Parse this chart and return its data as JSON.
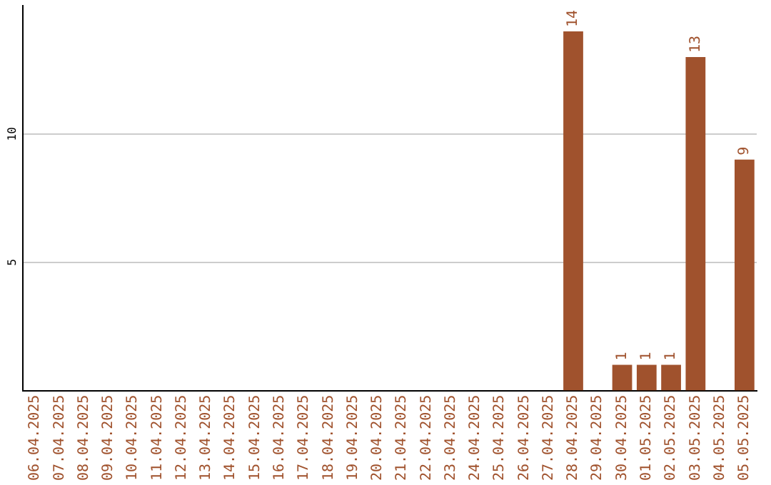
{
  "chart_data": {
    "type": "bar",
    "categories": [
      "06.04.2025",
      "07.04.2025",
      "08.04.2025",
      "09.04.2025",
      "10.04.2025",
      "11.04.2025",
      "12.04.2025",
      "13.04.2025",
      "14.04.2025",
      "15.04.2025",
      "16.04.2025",
      "17.04.2025",
      "18.04.2025",
      "19.04.2025",
      "20.04.2025",
      "21.04.2025",
      "22.04.2025",
      "23.04.2025",
      "24.04.2025",
      "25.04.2025",
      "26.04.2025",
      "27.04.2025",
      "28.04.2025",
      "29.04.2025",
      "30.04.2025",
      "01.05.2025",
      "02.05.2025",
      "03.05.2025",
      "04.05.2025",
      "05.05.2025"
    ],
    "values": [
      0,
      0,
      0,
      0,
      0,
      0,
      0,
      0,
      0,
      0,
      0,
      0,
      0,
      0,
      0,
      0,
      0,
      0,
      0,
      0,
      0,
      0,
      14,
      0,
      1,
      1,
      1,
      13,
      0,
      9
    ],
    "value_labels": [
      null,
      null,
      null,
      null,
      null,
      null,
      null,
      null,
      null,
      null,
      null,
      null,
      null,
      null,
      null,
      null,
      null,
      null,
      null,
      null,
      null,
      null,
      "14",
      null,
      "1",
      "1",
      "1",
      "13",
      null,
      "9"
    ],
    "color": "#a0522d",
    "ylim": [
      0,
      15
    ],
    "yticks": [
      5,
      10
    ],
    "grid": "y"
  }
}
